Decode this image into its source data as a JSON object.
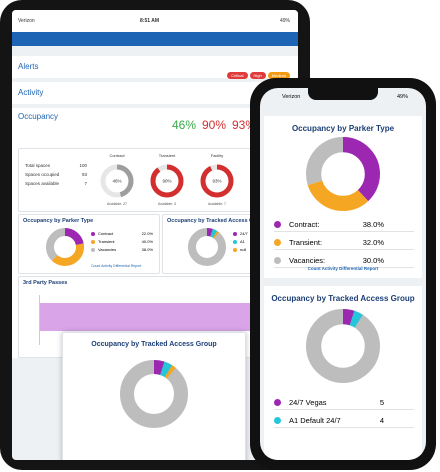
{
  "tablet": {
    "status": {
      "carrier": "Verizon",
      "time": "8:51 AM",
      "battery": "49%"
    },
    "alerts": {
      "title": "Alerts",
      "badges": [
        {
          "label": "Critical",
          "color": "#e03b3b"
        },
        {
          "label": "High",
          "color": "#e03b3b"
        },
        {
          "label": "Medium",
          "color": "#f39c12"
        }
      ]
    },
    "activity": {
      "title": "Activity"
    },
    "occupancy": {
      "title": "Occupancy",
      "percents": [
        {
          "value": 46,
          "label": "46%",
          "color": "#3aa84a"
        },
        {
          "value": 90,
          "label": "90%",
          "color": "#d32f2f"
        },
        {
          "value": 93,
          "label": "93%",
          "color": "#d32f2f"
        }
      ],
      "stats": [
        {
          "label": "Total spaces",
          "value": 100
        },
        {
          "label": "Spaces occupied",
          "value": 93
        },
        {
          "label": "Spaces available",
          "value": 7
        }
      ],
      "gauges": [
        {
          "name": "Contract",
          "value": 46,
          "label": "46%",
          "color": "#9e9e9e",
          "available": "Available: 27"
        },
        {
          "name": "Transient",
          "value": 90,
          "label": "90%",
          "color": "#d32f2f",
          "available": "Available: 3"
        },
        {
          "name": "Facility",
          "value": 93,
          "label": "93%",
          "color": "#d32f2f",
          "available": "Available: 7"
        }
      ]
    },
    "parker_type": {
      "title": "Occupancy by Parker Type",
      "series": [
        {
          "name": "Contract",
          "value": 22,
          "label": "22.0%",
          "color": "#9c27b0"
        },
        {
          "name": "Transient",
          "value": 40,
          "label": "40.0%",
          "color": "#f5a623"
        },
        {
          "name": "Vacancies",
          "value": 38,
          "label": "38.0%",
          "color": "#bdbdbd"
        }
      ],
      "link": "Count Activity Differential Report"
    },
    "tracked_group": {
      "title": "Occupancy by Tracked Access Group",
      "series": [
        {
          "name": "24/7",
          "value": 5,
          "color": "#9c27b0"
        },
        {
          "name": "A1",
          "value": 4,
          "color": "#26c6da"
        },
        {
          "name": "null",
          "value": 2,
          "color": "#f5a623"
        }
      ]
    },
    "third_party": {
      "title": "3rd Party Passes"
    },
    "overlay": {
      "title": "Occupancy by Tracked Access Group"
    }
  },
  "phone": {
    "status": {
      "carrier": "Verizon",
      "battery": "49%"
    },
    "parker_type": {
      "title": "Occupancy by Parker Type",
      "series": [
        {
          "name": "Contract:",
          "value": 38,
          "label": "38.0%",
          "color": "#9c27b0"
        },
        {
          "name": "Transient:",
          "value": 32,
          "label": "32.0%",
          "color": "#f5a623"
        },
        {
          "name": "Vacancies:",
          "value": 30,
          "label": "30.0%",
          "color": "#bdbdbd"
        }
      ],
      "link": "Count Activity Differential Report"
    },
    "tracked_group": {
      "title": "Occupancy by Tracked Access Group",
      "series": [
        {
          "name": "24/7 Vegas",
          "value": 5,
          "color": "#9c27b0"
        },
        {
          "name": "A1 Default 24/7",
          "value": 4,
          "color": "#26c6da"
        }
      ]
    }
  }
}
